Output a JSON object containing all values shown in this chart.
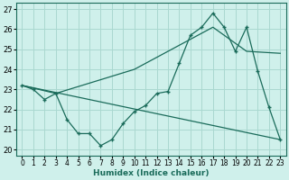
{
  "xlabel": "Humidex (Indice chaleur)",
  "bg_color": "#cff0eb",
  "grid_color": "#aad8d0",
  "line_color": "#1a6b5a",
  "xlim": [
    -0.5,
    23.5
  ],
  "ylim": [
    19.7,
    27.3
  ],
  "xticks": [
    0,
    1,
    2,
    3,
    4,
    5,
    6,
    7,
    8,
    9,
    10,
    11,
    12,
    13,
    14,
    15,
    16,
    17,
    18,
    19,
    20,
    21,
    22,
    23
  ],
  "yticks": [
    20,
    21,
    22,
    23,
    24,
    25,
    26,
    27
  ],
  "line1_x": [
    0,
    1,
    2,
    3,
    4,
    5,
    6,
    7,
    8,
    9,
    10,
    11,
    12,
    13,
    14,
    15,
    16,
    17,
    18,
    19,
    20,
    21,
    22,
    23
  ],
  "line1_y": [
    23.2,
    23.0,
    22.5,
    22.8,
    21.5,
    20.8,
    20.8,
    20.2,
    20.5,
    21.3,
    21.9,
    22.2,
    22.8,
    22.9,
    24.3,
    25.7,
    26.1,
    26.8,
    26.1,
    24.9,
    26.1,
    23.9,
    22.1,
    20.5
  ],
  "line2_x": [
    0,
    23
  ],
  "line2_y": [
    23.2,
    20.5
  ],
  "line3_x": [
    0,
    3,
    10,
    17,
    20,
    23
  ],
  "line3_y": [
    23.2,
    22.8,
    24.0,
    26.1,
    24.9,
    24.8
  ]
}
